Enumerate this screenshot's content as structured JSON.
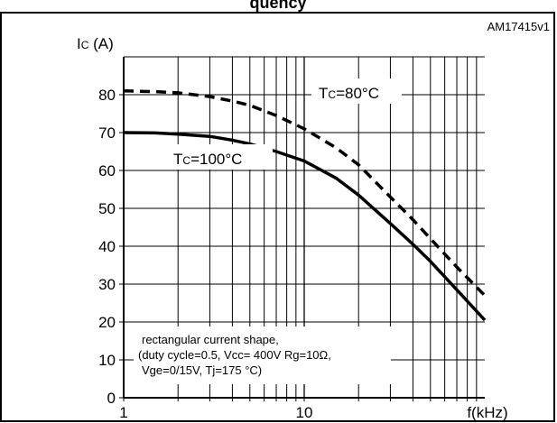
{
  "figure_id": "AM17415v1",
  "partial_title": "quency",
  "chart_data": {
    "type": "line",
    "x_scale": "log",
    "xlim": [
      1,
      100
    ],
    "ylim": [
      0,
      90
    ],
    "x_ticks": [
      {
        "value": 1,
        "label": "1"
      },
      {
        "value": 10,
        "label": "10"
      }
    ],
    "x_axis_label": "f(kHz)",
    "y_ticks": [
      {
        "value": 0,
        "label": "0"
      },
      {
        "value": 10,
        "label": "10"
      },
      {
        "value": 20,
        "label": "20"
      },
      {
        "value": 30,
        "label": "30"
      },
      {
        "value": 40,
        "label": "40"
      },
      {
        "value": 50,
        "label": "50"
      },
      {
        "value": 60,
        "label": "60"
      },
      {
        "value": 70,
        "label": "70"
      },
      {
        "value": 80,
        "label": "80"
      }
    ],
    "y_axis_label": {
      "main": "I",
      "sub": "C",
      "unit": " (A)"
    },
    "grid": true,
    "series": [
      {
        "name": "TC=80°C",
        "label_main": "T",
        "label_sub": "C",
        "label_rest": "=80°C",
        "style": "dashed",
        "x": [
          1,
          1.5,
          2,
          3,
          4,
          5,
          7,
          10,
          15,
          20,
          30,
          40,
          50,
          70,
          100
        ],
        "y": [
          81,
          80.8,
          80.5,
          79.5,
          78.3,
          77.2,
          74.5,
          71,
          66,
          61.5,
          53,
          47,
          42,
          34.5,
          27
        ]
      },
      {
        "name": "TC=100°C",
        "label_main": "T",
        "label_sub": "C",
        "label_rest": "=100°C",
        "style": "solid",
        "x": [
          1,
          1.5,
          2,
          3,
          4,
          5,
          7,
          10,
          15,
          20,
          30,
          40,
          50,
          70,
          100
        ],
        "y": [
          70,
          69.9,
          69.6,
          69,
          68,
          67,
          65,
          62.5,
          58,
          53.5,
          46,
          40.5,
          36,
          28.5,
          20.5
        ]
      }
    ],
    "annotation": [
      "rectangular current shape,",
      "(duty cycle=0.5, Vcc= 400V Rg=10Ω,",
      "Vge=0/15V, Tj=175 °C)"
    ]
  }
}
